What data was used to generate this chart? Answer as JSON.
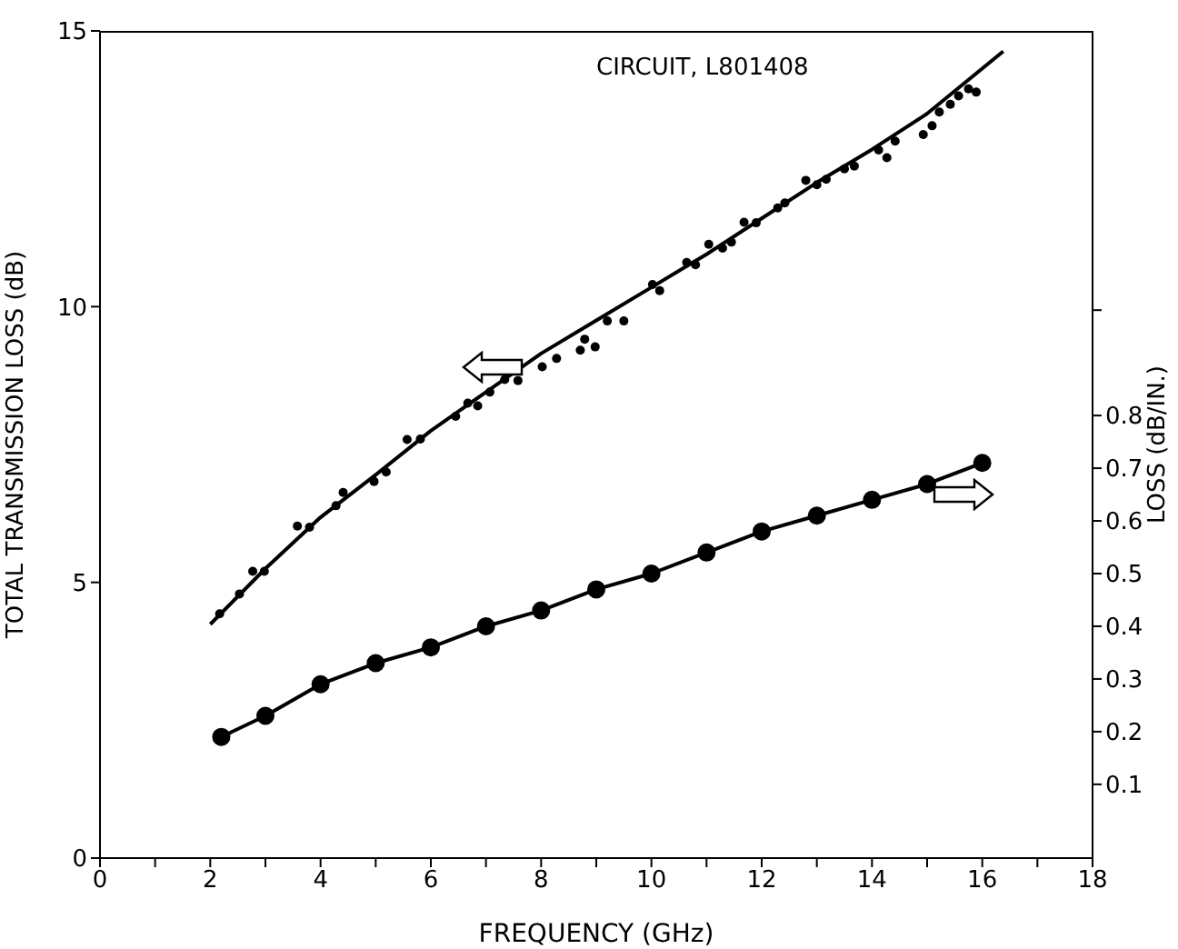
{
  "chart_data": {
    "type": "line",
    "xlabel": "FREQUENCY (GHz)",
    "ylabel": "TOTAL TRANSMISSION LOSS (dB)",
    "y2label": "LOSS (dB/IN.)",
    "annotations": [
      "CIRCUIT, L801408"
    ],
    "xlim": [
      0,
      18
    ],
    "xticks": [
      0,
      {
        "value": 1,
        "label": null
      },
      2,
      {
        "value": 3,
        "label": null
      },
      4,
      {
        "value": 5,
        "label": null
      },
      6,
      {
        "value": 7,
        "label": null
      },
      8,
      {
        "value": 9,
        "label": null
      },
      10,
      {
        "value": 11,
        "label": null
      },
      12,
      {
        "value": 13,
        "label": null
      },
      14,
      {
        "value": 15,
        "label": null
      },
      16,
      {
        "value": 17,
        "label": null
      },
      18
    ],
    "ylim": [
      0,
      15
    ],
    "yticks": [
      0,
      5,
      10,
      15
    ],
    "y2lim": [
      -0.04,
      1.53
    ],
    "y2ticks": [
      0.1,
      0.2,
      0.3,
      0.4,
      0.5,
      0.6,
      0.7,
      0.8,
      {
        "value": 1.0,
        "label": null
      }
    ],
    "series": [
      {
        "type": "scatter",
        "color": "#000000",
        "marker": "circle",
        "x": [
          2.17,
          2.53,
          2.77,
          2.98,
          3.58,
          3.8,
          4.28,
          4.41,
          4.97,
          5.19,
          5.57,
          5.81,
          6.45,
          6.67,
          6.85,
          7.07,
          7.34,
          7.58,
          8.02,
          8.28,
          8.71,
          8.79,
          8.98,
          9.2,
          9.5,
          10.02,
          10.15,
          10.64,
          10.8,
          11.04,
          11.29,
          11.45,
          11.68,
          11.9,
          12.29,
          12.42,
          12.8,
          13.0,
          13.17,
          13.5,
          13.68,
          14.12,
          14.27,
          14.42,
          14.93,
          15.09,
          15.22,
          15.42,
          15.57,
          15.75,
          15.89
        ],
        "values": [
          4.43,
          4.79,
          5.2,
          5.2,
          6.02,
          6.0,
          6.39,
          6.63,
          6.83,
          7.0,
          7.59,
          7.6,
          8.01,
          8.25,
          8.2,
          8.45,
          8.68,
          8.66,
          8.91,
          9.06,
          9.21,
          9.41,
          9.27,
          9.74,
          9.74,
          10.4,
          10.29,
          10.8,
          10.76,
          11.13,
          11.06,
          11.17,
          11.53,
          11.52,
          11.79,
          11.88,
          12.29,
          12.21,
          12.31,
          12.5,
          12.55,
          12.84,
          12.7,
          13.0,
          13.12,
          13.28,
          13.53,
          13.67,
          13.82,
          13.95,
          13.89
        ]
      },
      {
        "color": "#000000",
        "marker": "none",
        "x": [
          2,
          3,
          4,
          5,
          6,
          7,
          8,
          9,
          10,
          11,
          12,
          13,
          14,
          15,
          16.38
        ],
        "values": [
          4.24,
          5.25,
          6.18,
          6.95,
          7.75,
          8.45,
          9.15,
          9.75,
          10.35,
          10.95,
          11.6,
          12.25,
          12.85,
          13.5,
          14.63
        ]
      },
      {
        "axis": "y2",
        "color": "#000000",
        "marker": "circle",
        "x": [
          2.2,
          3,
          4,
          5,
          6,
          7,
          8,
          9,
          10,
          11,
          12,
          13,
          14,
          15,
          16
        ],
        "values": [
          0.19,
          0.23,
          0.29,
          0.33,
          0.36,
          0.4,
          0.43,
          0.47,
          0.5,
          0.54,
          0.58,
          0.61,
          0.64,
          0.67,
          0.71
        ]
      }
    ]
  }
}
